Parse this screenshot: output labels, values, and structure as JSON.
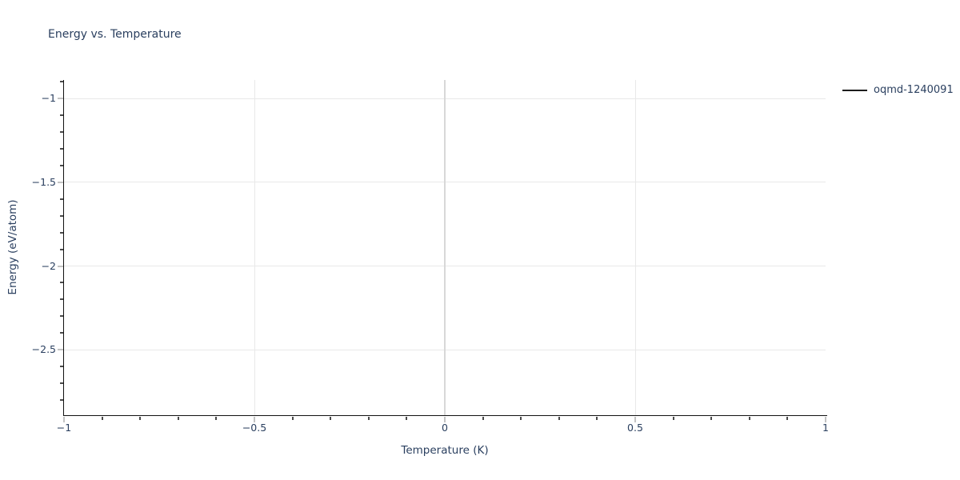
{
  "chart_data": {
    "type": "line",
    "title": "Energy vs. Temperature",
    "xlabel": "Temperature (K)",
    "ylabel": "Energy (eV/atom)",
    "xlim": [
      -1,
      1
    ],
    "ylim": [
      -2.89,
      -0.89
    ],
    "x_ticks": {
      "values": [
        -1,
        -0.5,
        0,
        0.5,
        1
      ],
      "labels": [
        "−1",
        "−0.5",
        "0",
        "0.5",
        "1"
      ]
    },
    "y_ticks": {
      "values": [
        -1,
        -1.5,
        -2,
        -2.5
      ],
      "labels": [
        "−1",
        "−1.5",
        "−2",
        "−2.5"
      ]
    },
    "minor_tick_step": 0.1,
    "grid": true,
    "zeroline_x": 0,
    "legend": {
      "position": "top-right-outside",
      "entries": [
        {
          "label": "oqmd-1240091",
          "line_color": "#1c1c1c"
        }
      ]
    },
    "series": [
      {
        "name": "oqmd-1240091",
        "x": [],
        "y": []
      }
    ],
    "colors": {
      "background": "#ffffff",
      "text": "#2a3f5f",
      "axis_line": "#111111",
      "gridline": "#e8e8e8",
      "zeroline": "#d8d8d8",
      "major_tick": "#c4c4c4",
      "minor_tick": "#4a4a4a"
    }
  }
}
